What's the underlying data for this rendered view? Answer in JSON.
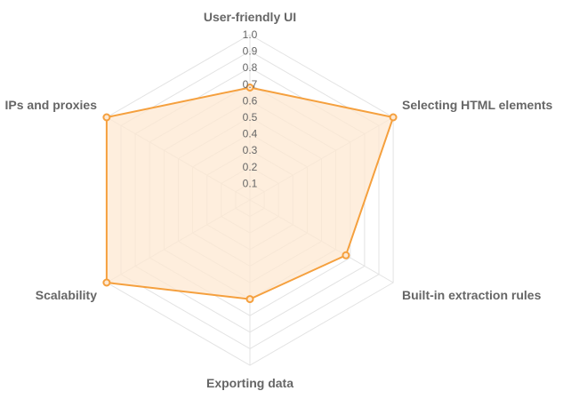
{
  "chart_data": {
    "type": "radar",
    "axes": [
      "User-friendly UI",
      "Selecting HTML elements",
      "Built-in extraction rules",
      "Exporting data",
      "Scalability",
      "IPs and proxies"
    ],
    "series": [
      {
        "values": [
          0.68,
          1.0,
          0.67,
          0.6,
          1.0,
          1.0
        ]
      }
    ],
    "rlim": [
      0,
      1.0
    ],
    "ticks": [
      "0.1",
      "0.2",
      "0.3",
      "0.4",
      "0.5",
      "0.6",
      "0.7",
      "0.8",
      "0.9",
      "1.0"
    ],
    "grid": true,
    "colors": {
      "line": "#f5a03e",
      "fill": "#fde8d2",
      "grid": "#e3e3e3",
      "text": "#666666"
    }
  }
}
